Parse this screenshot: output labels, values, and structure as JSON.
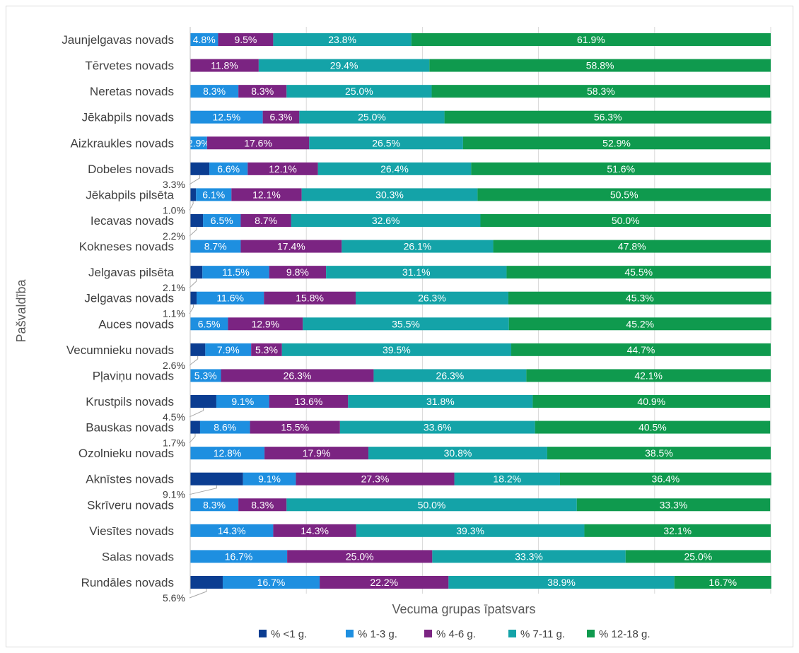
{
  "chart_data": {
    "type": "bar",
    "orientation": "horizontal",
    "stacked": "100%",
    "title": "",
    "xlabel": "Vecuma grupas īpatsvars",
    "ylabel": "Pašvaldība",
    "xlim": [
      0,
      100
    ],
    "grid": true,
    "legend_position": "bottom",
    "categories": [
      "Jaunjelgavas novads",
      "Tērvetes novads",
      "Neretas novads",
      "Jēkabpils novads",
      "Aizkraukles novads",
      "Dobeles novads",
      "Jēkabpils pilsēta",
      "Iecavas novads",
      "Kokneses novads",
      "Jelgavas pilsēta",
      "Jelgavas novads",
      "Auces novads",
      "Vecumnieku novads",
      "Pļaviņu novads",
      "Krustpils novads",
      "Bauskas novads",
      "Ozolnieku novads",
      "Aknīstes novads",
      "Skrīveru novads",
      "Viesītes novads",
      "Salas novads",
      "Rundāles novads"
    ],
    "series": [
      {
        "name": "% <1 g.",
        "color": "#0b3d91",
        "values": [
          0,
          0,
          0,
          0,
          0,
          3.3,
          1.0,
          2.2,
          0,
          2.1,
          1.1,
          0,
          2.6,
          0,
          4.5,
          1.7,
          0,
          9.1,
          0,
          0,
          0,
          5.6
        ],
        "labels": [
          "",
          "",
          "",
          "",
          "",
          "3.3%",
          "1.0%",
          "2.2%",
          "",
          "2.1%",
          "1.1%",
          "",
          "2.6%",
          "",
          "4.5%",
          "1.7%",
          "",
          "9.1%",
          "",
          "",
          "",
          "5.6%"
        ]
      },
      {
        "name": "% 1-3 g.",
        "color": "#1e8fe0",
        "values": [
          4.8,
          0,
          8.3,
          12.5,
          2.9,
          6.6,
          6.1,
          6.5,
          8.7,
          11.5,
          11.6,
          6.5,
          7.9,
          5.3,
          9.1,
          8.6,
          12.8,
          9.1,
          8.3,
          14.3,
          16.7,
          16.7
        ],
        "labels": [
          "4.8%",
          "",
          "8.3%",
          "12.5%",
          "2.9%",
          "6.6%",
          "6.1%",
          "6.5%",
          "8.7%",
          "11.5%",
          "11.6%",
          "6.5%",
          "7.9%",
          "5.3%",
          "9.1%",
          "8.6%",
          "12.8%",
          "9.1%",
          "8.3%",
          "14.3%",
          "16.7%",
          "16.7%"
        ]
      },
      {
        "name": "% 4-6 g.",
        "color": "#7b2482",
        "values": [
          9.5,
          11.8,
          8.3,
          6.3,
          17.6,
          12.1,
          12.1,
          8.7,
          17.4,
          9.8,
          15.8,
          12.9,
          5.3,
          26.3,
          13.6,
          15.5,
          17.9,
          27.3,
          8.3,
          14.3,
          25.0,
          22.2
        ],
        "labels": [
          "9.5%",
          "11.8%",
          "8.3%",
          "6.3%",
          "17.6%",
          "12.1%",
          "12.1%",
          "8.7%",
          "17.4%",
          "9.8%",
          "15.8%",
          "12.9%",
          "5.3%",
          "26.3%",
          "13.6%",
          "15.5%",
          "17.9%",
          "27.3%",
          "8.3%",
          "14.3%",
          "25.0%",
          "22.2%"
        ]
      },
      {
        "name": "% 7-11 g.",
        "color": "#14a3a8",
        "values": [
          23.8,
          29.4,
          25.0,
          25.0,
          26.5,
          26.4,
          30.3,
          32.6,
          26.1,
          31.1,
          26.3,
          35.5,
          39.5,
          26.3,
          31.8,
          33.6,
          30.8,
          18.2,
          50.0,
          39.3,
          33.3,
          38.9
        ],
        "labels": [
          "23.8%",
          "29.4%",
          "25.0%",
          "25.0%",
          "26.5%",
          "26.4%",
          "30.3%",
          "32.6%",
          "26.1%",
          "31.1%",
          "26.3%",
          "35.5%",
          "39.5%",
          "26.3%",
          "31.8%",
          "33.6%",
          "30.8%",
          "18.2%",
          "50.0%",
          "39.3%",
          "33.3%",
          "38.9%"
        ]
      },
      {
        "name": "% 12-18 g.",
        "color": "#0f9a4e",
        "values": [
          61.9,
          58.8,
          58.3,
          56.3,
          52.9,
          51.6,
          50.5,
          50.0,
          47.8,
          45.5,
          45.3,
          45.2,
          44.7,
          42.1,
          40.9,
          40.5,
          38.5,
          36.4,
          33.3,
          32.1,
          25.0,
          16.7
        ],
        "labels": [
          "61.9%",
          "58.8%",
          "58.3%",
          "56.3%",
          "52.9%",
          "51.6%",
          "50.5%",
          "50.0%",
          "47.8%",
          "45.5%",
          "45.3%",
          "45.2%",
          "44.7%",
          "42.1%",
          "40.9%",
          "40.5%",
          "38.5%",
          "36.4%",
          "33.3%",
          "32.1%",
          "25.0%",
          "16.7%"
        ]
      }
    ]
  }
}
